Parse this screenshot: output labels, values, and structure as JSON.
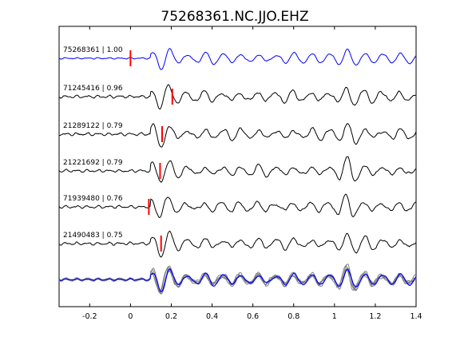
{
  "chart_data": {
    "type": "line",
    "title": "75268361.NC.JJO.EHZ",
    "xlabel": "",
    "ylabel": "",
    "xlim": [
      -0.35,
      1.4
    ],
    "x_ticks": [
      -0.2,
      0,
      0.2,
      0.4,
      0.6,
      0.8,
      1,
      1.2,
      1.4
    ],
    "x_tick_labels": [
      "-0.2",
      "0",
      "0.2",
      "0.4",
      "0.6",
      "0.8",
      "1",
      "1.2",
      "1.4"
    ],
    "grid": false,
    "colors": {
      "master": "#0000ff",
      "trace": "#000000",
      "overlay": "#808080",
      "pick": "#ff0000"
    },
    "series": [
      {
        "name": "75268361 | 1.00",
        "event_id": "75268361",
        "cc": "1.00",
        "pick_time": 0.0,
        "color": "#0000ff",
        "seed": 11
      },
      {
        "name": "71245416 | 0.96",
        "event_id": "71245416",
        "cc": "0.96",
        "pick_time": 0.205,
        "color": "#000000",
        "seed": 23
      },
      {
        "name": "21289122 | 0.79",
        "event_id": "21289122",
        "cc": "0.79",
        "pick_time": 0.155,
        "color": "#000000",
        "seed": 37
      },
      {
        "name": "21221692 | 0.79",
        "event_id": "21221692",
        "cc": "0.79",
        "pick_time": 0.145,
        "color": "#000000",
        "seed": 41
      },
      {
        "name": "71939480 | 0.76",
        "event_id": "71939480",
        "cc": "0.76",
        "pick_time": 0.09,
        "color": "#000000",
        "seed": 53
      },
      {
        "name": "21490483 | 0.75",
        "event_id": "21490483",
        "cc": "0.75",
        "pick_time": 0.15,
        "color": "#000000",
        "seed": 67
      }
    ],
    "stack": {
      "overlay_count": 6,
      "description": "overlay of all aligned traces with master trace in blue"
    }
  }
}
